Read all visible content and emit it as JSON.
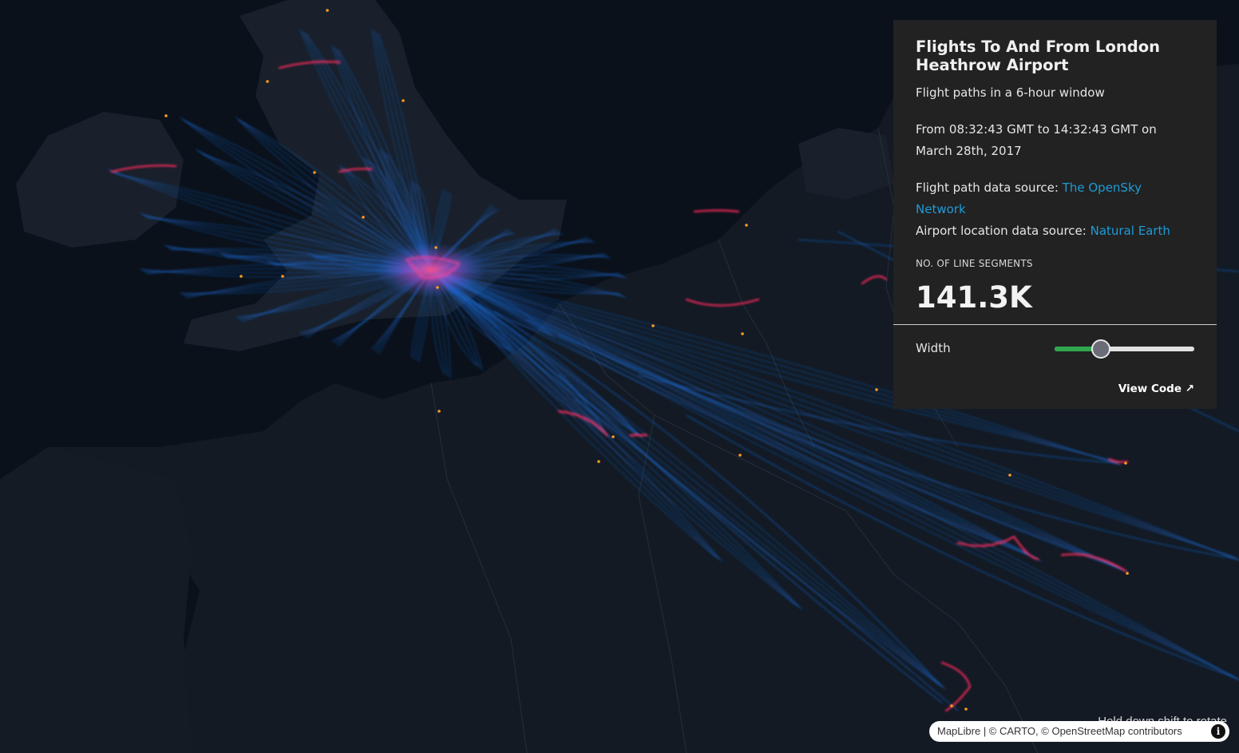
{
  "panel": {
    "title": "Flights To And From London Heathrow Airport",
    "subtitle": "Flight paths in a 6-hour window",
    "time_range": "From 08:32:43 GMT to 14:32:43 GMT on March 28th, 2017",
    "flight_source_label": "Flight path data source: ",
    "flight_source_link": "The OpenSky Network",
    "airport_source_label": "Airport location data source: ",
    "airport_source_link": "Natural Earth",
    "stat_label": "NO. OF LINE SEGMENTS",
    "stat_value": "141.3K",
    "width_label": "Width",
    "width_level": 0.33,
    "view_code": "View Code ↗"
  },
  "map": {
    "hint": "Hold down shift to rotate",
    "attribution": {
      "maplibre": "MapLibre",
      "sep1": " | © CARTO, © ",
      "osm": "OpenStreetMap",
      "contributors": " contributors"
    },
    "colors": {
      "water": "#0b111b",
      "land": "#161d27",
      "path_low": "#1c6fe0",
      "path_high": "#ff2a5c",
      "airport": "#ff9a1f"
    }
  }
}
